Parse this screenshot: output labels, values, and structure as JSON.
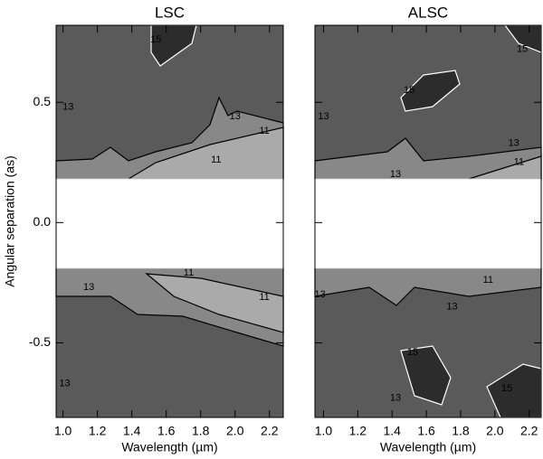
{
  "chart_data": [
    {
      "type": "contour",
      "title": "LSC",
      "xlabel": "Wavelength (µm)",
      "ylabel": "Angular separation (as)",
      "xlim": [
        0.96,
        2.28
      ],
      "ylim": [
        -0.81,
        0.82
      ],
      "xticks": [
        {
          "value": 1,
          "label": "1.0"
        },
        1.2,
        1.4,
        1.6,
        1.8,
        {
          "value": 2,
          "label": "2.0"
        },
        2.2
      ],
      "yticks": [
        -0.5,
        {
          "value": 0,
          "label": "0.0"
        },
        0.5
      ],
      "levels": [
        11,
        13,
        15
      ],
      "fill_colors": [
        "#aaaaaa",
        "#888888",
        "#5a5a5a",
        "#2c2c2c"
      ],
      "contour_labels": [
        {
          "value": 15,
          "x": 1.54,
          "y": 0.76
        },
        {
          "value": 13,
          "x": 1.03,
          "y": 0.48
        },
        {
          "value": 13,
          "x": 2.0,
          "y": 0.44
        },
        {
          "value": 11,
          "x": 2.17,
          "y": 0.38
        },
        {
          "value": 11,
          "x": 1.89,
          "y": 0.26
        },
        {
          "value": 11,
          "x": 1.73,
          "y": -0.21
        },
        {
          "value": 13,
          "x": 1.15,
          "y": -0.27
        },
        {
          "value": 11,
          "x": 2.17,
          "y": -0.31
        },
        {
          "value": 13,
          "x": 1.01,
          "y": -0.67
        }
      ]
    },
    {
      "type": "contour",
      "title": "ALSC",
      "xlabel": "Wavelength (µm)",
      "xlim": [
        0.95,
        2.27
      ],
      "ylim": [
        -0.81,
        0.82
      ],
      "xticks": [
        {
          "value": 1,
          "label": "1.0"
        },
        1.2,
        1.4,
        1.6,
        1.8,
        {
          "value": 2,
          "label": "2.0"
        },
        2.2
      ],
      "yticks": [
        -0.5,
        0,
        0.5
      ],
      "levels": [
        11,
        13,
        15
      ],
      "fill_colors": [
        "#aaaaaa",
        "#888888",
        "#5a5a5a",
        "#2c2c2c"
      ],
      "contour_labels": [
        {
          "value": 15,
          "x": 2.16,
          "y": 0.72
        },
        {
          "value": 15,
          "x": 1.5,
          "y": 0.55
        },
        {
          "value": 13,
          "x": 1.0,
          "y": 0.44
        },
        {
          "value": 13,
          "x": 2.11,
          "y": 0.33
        },
        {
          "value": 11,
          "x": 2.14,
          "y": 0.25
        },
        {
          "value": 13,
          "x": 1.42,
          "y": 0.2
        },
        {
          "value": 11,
          "x": 1.96,
          "y": -0.24
        },
        {
          "value": 13,
          "x": 1.75,
          "y": -0.35
        },
        {
          "value": 13,
          "x": 0.98,
          "y": -0.3
        },
        {
          "value": 15,
          "x": 1.52,
          "y": -0.54
        },
        {
          "value": 15,
          "x": 2.07,
          "y": -0.69
        },
        {
          "value": 13,
          "x": 1.42,
          "y": -0.73
        }
      ]
    }
  ]
}
